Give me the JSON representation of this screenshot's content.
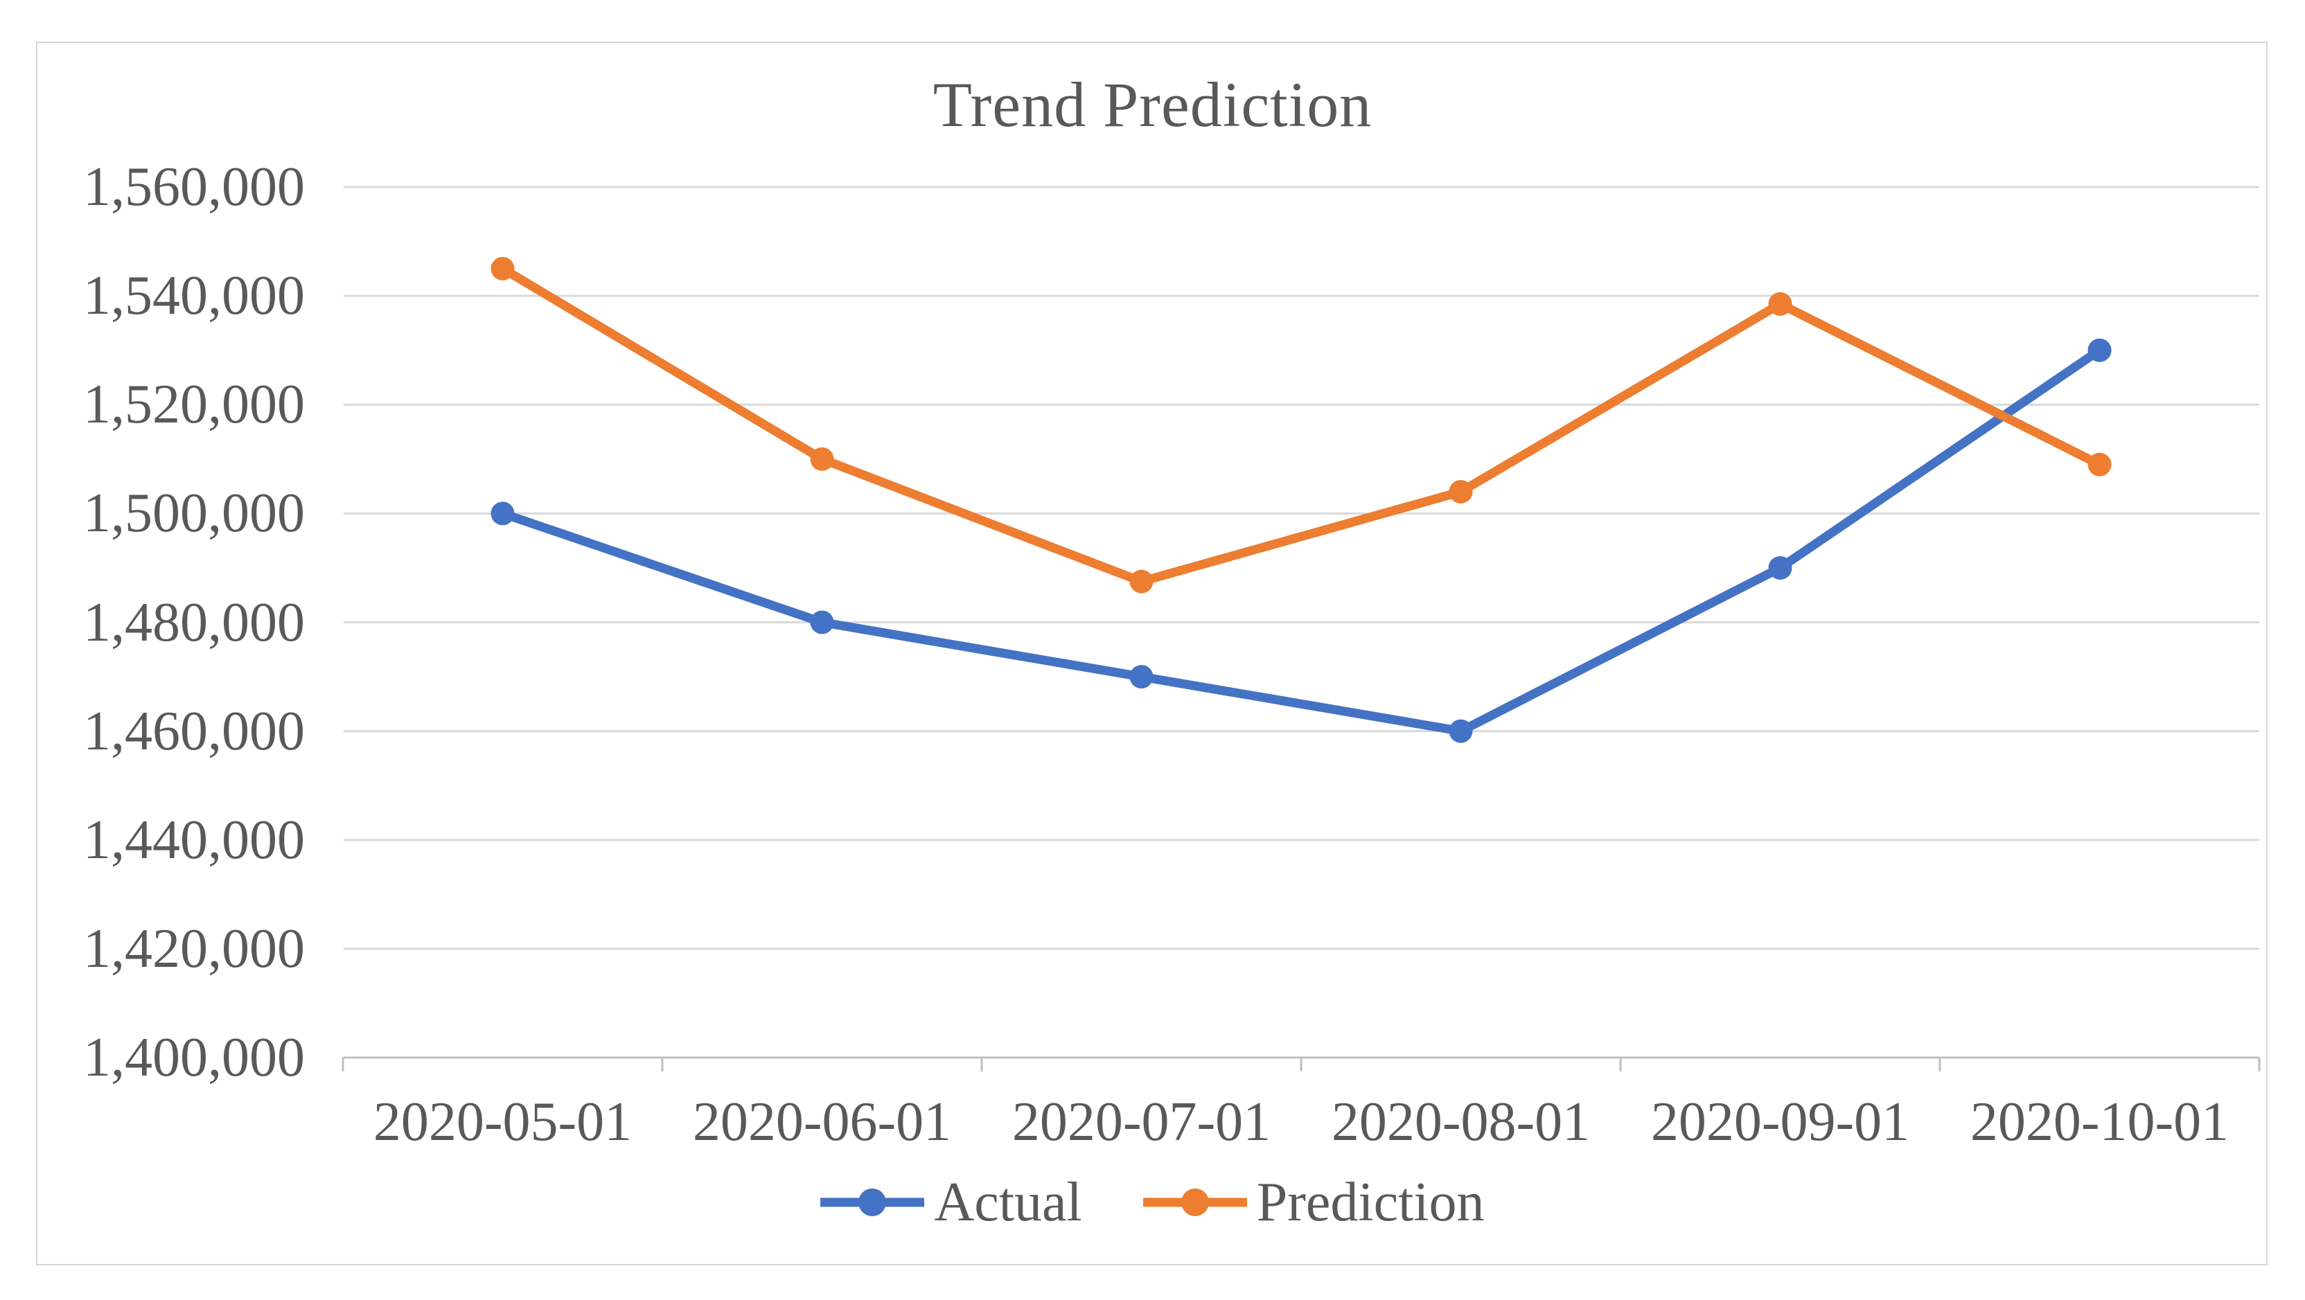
{
  "chart_data": {
    "type": "line",
    "title": "Trend Prediction",
    "categories": [
      "2020-05-01",
      "2020-06-01",
      "2020-07-01",
      "2020-08-01",
      "2020-09-01",
      "2020-10-01"
    ],
    "series": [
      {
        "name": "Actual",
        "color": "#4472C4",
        "values": [
          1500000,
          1480000,
          1470000,
          1460000,
          1490000,
          1530000
        ]
      },
      {
        "name": "Prediction",
        "color": "#ED7D31",
        "values": [
          1545000,
          1510000,
          1487500,
          1504000,
          1538500,
          1509000
        ]
      }
    ],
    "xlabel": "",
    "ylabel": "",
    "ylim": [
      1400000,
      1560000
    ],
    "y_tick_step": 20000,
    "y_tick_labels": [
      "1,400,000",
      "1,420,000",
      "1,440,000",
      "1,460,000",
      "1,480,000",
      "1,500,000",
      "1,520,000",
      "1,540,000",
      "1,560,000"
    ],
    "grid": true,
    "legend_position": "bottom",
    "marker_style": "circle"
  },
  "colors": {
    "actual_line": "#4472C4",
    "prediction_line": "#ED7D31",
    "gridline": "#D9D9D9",
    "axis_line": "#BFBFBF",
    "text": "#595959",
    "chart_border": "#D9D9D9",
    "background": "#FFFFFF"
  }
}
